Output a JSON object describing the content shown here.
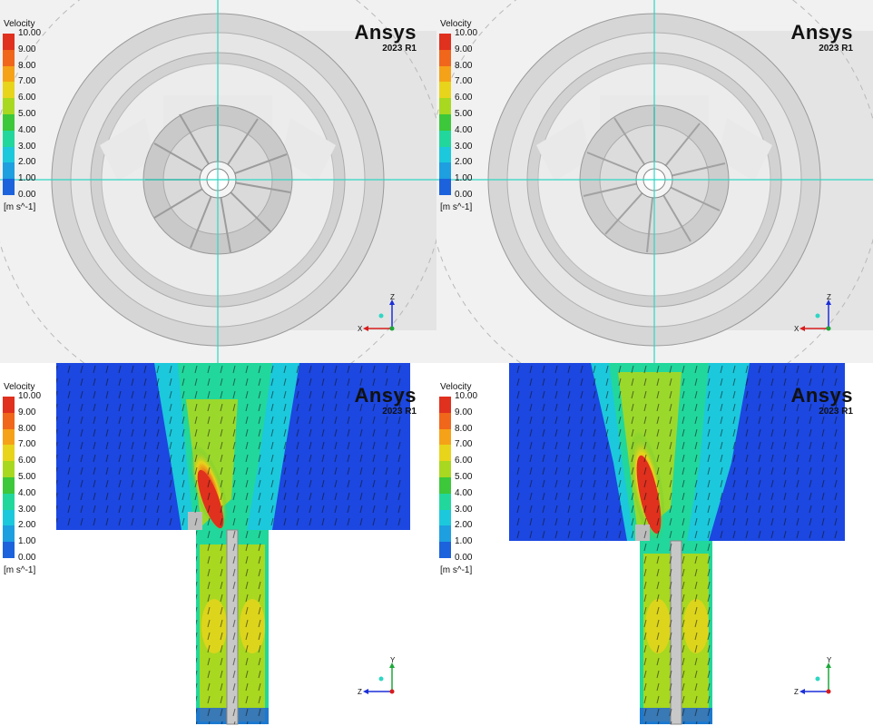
{
  "brand": {
    "name": "Ansys",
    "version": "2023 R1"
  },
  "legend": {
    "title": "Velocity",
    "units": "[m s^-1]",
    "ticks": [
      "10.00",
      "9.00",
      "8.00",
      "7.00",
      "6.00",
      "5.00",
      "4.00",
      "3.00",
      "2.00",
      "1.00",
      "0.00"
    ],
    "colors": [
      "#e0301e",
      "#f0661a",
      "#f5a218",
      "#e8d41b",
      "#a8d820",
      "#3cc83a",
      "#22d79c",
      "#1cc8dc",
      "#1d9fe0",
      "#1c62dc"
    ]
  },
  "axes_top": {
    "vertical": "Z",
    "horizontal": "X"
  },
  "axes_bottom": {
    "vertical": "Y",
    "horizontal": "Z"
  },
  "colors": {
    "crosshair": "#2fd6c4",
    "background": "#f1f1f1",
    "field_blue": "#1c47e0"
  }
}
